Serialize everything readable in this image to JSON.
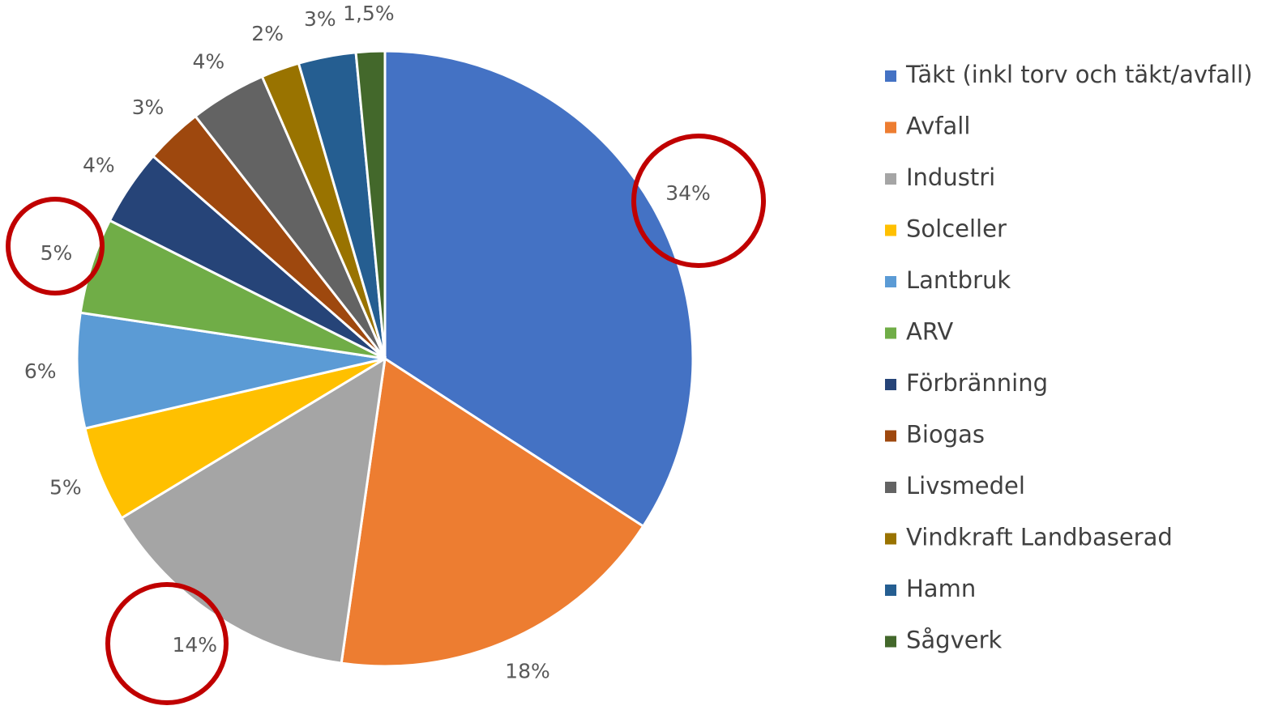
{
  "chart_data": {
    "type": "pie",
    "categories": [
      "Täkt (inkl torv och täkt/avfall)",
      "Avfall",
      "Industri",
      "Solceller",
      "Lantbruk",
      "ARV",
      "Förbränning",
      "Biogas",
      "Livsmedel",
      "Vindkraft Landbaserad",
      "Hamn",
      "Sågverk"
    ],
    "values": [
      34,
      18,
      14,
      5,
      6,
      5,
      4,
      3,
      4,
      2,
      3,
      1.5
    ],
    "value_labels": [
      "34%",
      "18%",
      "14%",
      "5%",
      "6%",
      "5%",
      "4%",
      "3%",
      "4%",
      "2%",
      "3%",
      "1,5%"
    ],
    "colors": [
      "#4472c4",
      "#ed7d31",
      "#a5a5a5",
      "#ffc000",
      "#5b9bd5",
      "#70ad47",
      "#264478",
      "#9e480e",
      "#636363",
      "#997300",
      "#255e91",
      "#43682b"
    ],
    "legend": "right"
  }
}
